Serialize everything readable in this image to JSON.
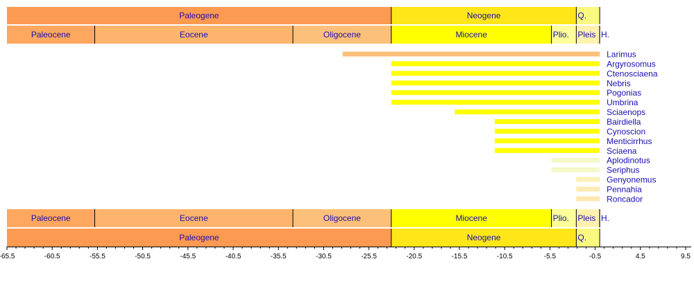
{
  "chart_data": {
    "type": "bar",
    "orientation": "horizontal-range",
    "xlim": [
      -65.5,
      9.5
    ],
    "x_ticks": [
      -65.5,
      -60.5,
      -55.5,
      -50.5,
      -45.5,
      -40.5,
      -35.5,
      -30.5,
      -25.5,
      -20.5,
      -15.5,
      -10.5,
      -5.5,
      -0.5,
      4.5,
      9.5
    ],
    "periods": [
      {
        "label": "Paleogene",
        "start": -65.5,
        "end": -23.03,
        "color": "#FD9A52"
      },
      {
        "label": "Neogene",
        "start": -23.03,
        "end": -2.588,
        "color": "#FFE619"
      },
      {
        "label": "Q.",
        "start": -2.588,
        "end": 0,
        "color": "#F9F97F"
      }
    ],
    "epochs": [
      {
        "label": "Paleocene",
        "start": -65.5,
        "end": -55.8,
        "color": "#FDA75F"
      },
      {
        "label": "Eocene",
        "start": -55.8,
        "end": -33.9,
        "color": "#FDB46C"
      },
      {
        "label": "Oligocene",
        "start": -33.9,
        "end": -23.03,
        "color": "#FDC07A"
      },
      {
        "label": "Miocene",
        "start": -23.03,
        "end": -5.332,
        "color": "#FFFF00"
      },
      {
        "label": "Plio.",
        "start": -5.332,
        "end": -2.588,
        "color": "#FFFF99"
      },
      {
        "label": "Pleis",
        "start": -2.588,
        "end": -0.0117,
        "color": "#FFF2AE"
      },
      {
        "label": "H.",
        "start": -0.0117,
        "end": 0,
        "color": "#FEF2E0"
      }
    ],
    "series": [
      {
        "label": "Larimus",
        "start": -28.4,
        "end": 0,
        "color": "#FDC07A"
      },
      {
        "label": "Argyrosomus",
        "start": -23.03,
        "end": 0,
        "color": "#FFFF00"
      },
      {
        "label": "Ctenosciaena",
        "start": -23.03,
        "end": 0,
        "color": "#FFFF00"
      },
      {
        "label": "Nebris",
        "start": -23.03,
        "end": 0,
        "color": "#FFFF00"
      },
      {
        "label": "Pogonias",
        "start": -23.03,
        "end": 0,
        "color": "#FFFF00"
      },
      {
        "label": "Umbrina",
        "start": -23.03,
        "end": 0,
        "color": "#FFFF00"
      },
      {
        "label": "Sciaenops",
        "start": -16.0,
        "end": 0,
        "color": "#FFFF00"
      },
      {
        "label": "Bairdiella",
        "start": -11.6,
        "end": 0,
        "color": "#FFFF00"
      },
      {
        "label": "Cynoscion",
        "start": -11.6,
        "end": 0,
        "color": "#FFFF00"
      },
      {
        "label": "Menticirrhus",
        "start": -11.6,
        "end": 0,
        "color": "#FFFF00"
      },
      {
        "label": "Sciaena",
        "start": -11.6,
        "end": 0,
        "color": "#FFFF00"
      },
      {
        "label": "Aplodinotus",
        "start": -5.332,
        "end": 0,
        "color": "#F5F8C8"
      },
      {
        "label": "Seriphus",
        "start": -5.332,
        "end": 0,
        "color": "#F5F8C8"
      },
      {
        "label": "Genyonemus",
        "start": -2.588,
        "end": 0,
        "color": "#FBF0B8"
      },
      {
        "label": "Pennahia",
        "start": -2.588,
        "end": 0,
        "color": "#FBEBB5"
      },
      {
        "label": "Roncador",
        "start": -2.588,
        "end": 0,
        "color": "#FDE8B0"
      }
    ],
    "label_color": "#1a0db0"
  }
}
